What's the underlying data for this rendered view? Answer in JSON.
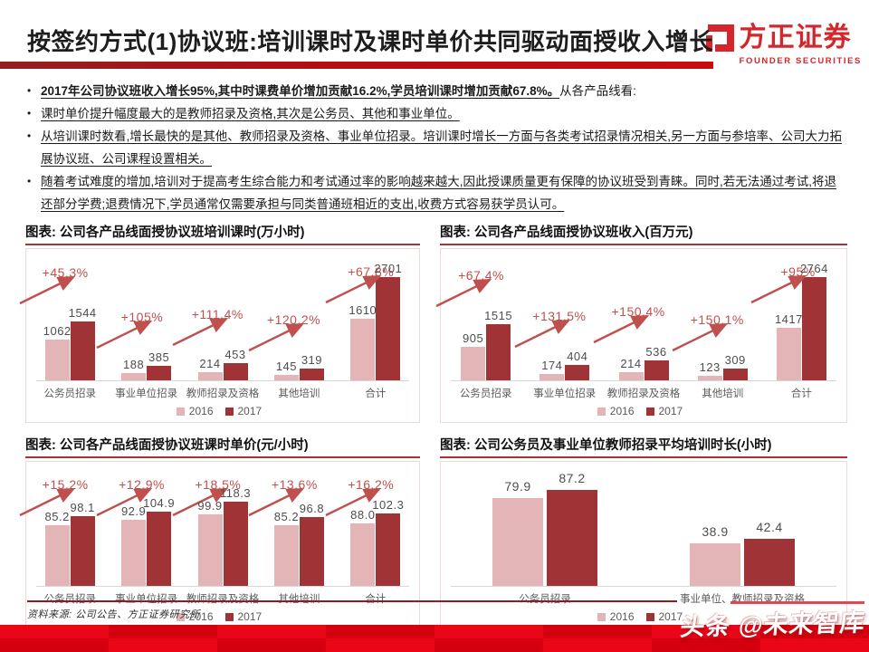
{
  "header": {
    "title": "按签约方式(1)协议班:培训课时及课时单价共同驱动面授收入增长",
    "logo_name": "方正证券",
    "logo_subtitle": "FOUNDER SECURITIES"
  },
  "bullets": [
    {
      "bold": "2017年公司协议班收入增长95%,其中时课费单价增加贡献16.2%,学员培训课时增加贡献67.8%。",
      "rest": "从各产品线看:"
    },
    {
      "text": "课时单价提升幅度最大的是教师招录及资格,其次是公务员、其他和事业单位。"
    },
    {
      "text": "从培训课时数看,增长最快的是其他、教师招录及资格、事业单位招录。培训课时增长一方面与各类考试招录情况相关,另一方面与参培率、公司大力拓展协议班、公司课程设置相关。"
    },
    {
      "text": "随着考试难度的增加,培训对于提高考生综合能力和考试通过率的影响越来越大,因此授课质量更有保障的协议班受到青睐。同时,若无法通过考试,将退还部分学费;退费情况下,学员通常仅需要承担与同类普通班相近的支出,收费方式容易获学员认可。"
    }
  ],
  "legend": {
    "y2016": "2016",
    "y2017": "2017"
  },
  "chart_data": [
    {
      "type": "bar",
      "title": "图表: 公司各产品线面授协议班培训课时(万小时)",
      "categories": [
        "公务员招录",
        "事业单位招录",
        "教师招录及资格",
        "其他培训",
        "合计"
      ],
      "series": [
        {
          "name": "2016",
          "values": [
            1062,
            188,
            214,
            145,
            1610
          ],
          "labels": [
            "1062",
            "188",
            "214",
            "145",
            "1610"
          ]
        },
        {
          "name": "2017",
          "values": [
            1544,
            385,
            453,
            319,
            2701
          ],
          "labels": [
            "1544",
            "385",
            "453",
            "319",
            "2701"
          ]
        }
      ],
      "growth_labels": [
        "+45.3%",
        "+105%",
        "+111.4%",
        "+120.2%",
        "+67.8%"
      ],
      "legend_position": "bottom",
      "grid": false,
      "ylim": [
        0,
        2800
      ]
    },
    {
      "type": "bar",
      "title": "图表: 公司各产品线面授协议班收入(百万元)",
      "categories": [
        "公务员招录",
        "事业单位招录",
        "教师招录及资格",
        "其他培训",
        "合计"
      ],
      "series": [
        {
          "name": "2016",
          "values": [
            905,
            174,
            214,
            123,
            1417
          ],
          "labels": [
            "905",
            "174",
            "214",
            "123",
            "1417"
          ]
        },
        {
          "name": "2017",
          "values": [
            1515,
            404,
            536,
            309,
            2764
          ],
          "labels": [
            "1515",
            "404",
            "536",
            "309",
            "2764"
          ]
        }
      ],
      "growth_labels": [
        "+67.4%",
        "+131.5%",
        "+150.4%",
        "+150.1%",
        "+95%"
      ],
      "legend_position": "bottom",
      "grid": false,
      "ylim": [
        0,
        2800
      ]
    },
    {
      "type": "bar",
      "title": "图表: 公司各产品线面授协议班课时单价(元/小时)",
      "categories": [
        "公务员招录",
        "事业单位招录",
        "教师招录及资格",
        "其他培训",
        "合计"
      ],
      "series": [
        {
          "name": "2016",
          "values": [
            85.2,
            92.9,
            99.9,
            85.2,
            88.0
          ],
          "labels": [
            "85.2",
            "92.9",
            "99.9",
            "85.2",
            "88.0"
          ]
        },
        {
          "name": "2017",
          "values": [
            98.1,
            104.9,
            118.3,
            96.8,
            102.3
          ],
          "labels": [
            "98.1",
            "104.9",
            "118.3",
            "96.8",
            "102.3"
          ]
        }
      ],
      "growth_labels": [
        "+15.2%",
        "+12.9%",
        "+18.5%",
        "+13.6%",
        "+16.2%"
      ],
      "legend_position": "bottom",
      "grid": false,
      "ylim": [
        0,
        125
      ]
    },
    {
      "type": "bar",
      "title": "图表: 公司公务员及事业单位教师招录平均培训时长(小时)",
      "categories": [
        "公务员招录",
        "事业单位、教师招录及资格"
      ],
      "series": [
        {
          "name": "2016",
          "values": [
            79.9,
            38.9
          ],
          "labels": [
            "79.9",
            "38.9"
          ]
        },
        {
          "name": "2017",
          "values": [
            87.2,
            42.4
          ],
          "labels": [
            "87.2",
            "42.4"
          ]
        }
      ],
      "legend_position": "bottom",
      "grid": false,
      "ylim": [
        0,
        95
      ]
    }
  ],
  "footer": {
    "source": "资料来源: 公司公告、方正证券研究所",
    "watermark": "头条 @未来智库"
  },
  "colors": {
    "bar_2016": "#e4b5b6",
    "bar_2017": "#a03335",
    "arrow": "#c0504d",
    "accent_red": "#c00a12",
    "title_underline": "#a93336",
    "band_red": "#e3000f",
    "logo_red": "#d5262b"
  }
}
